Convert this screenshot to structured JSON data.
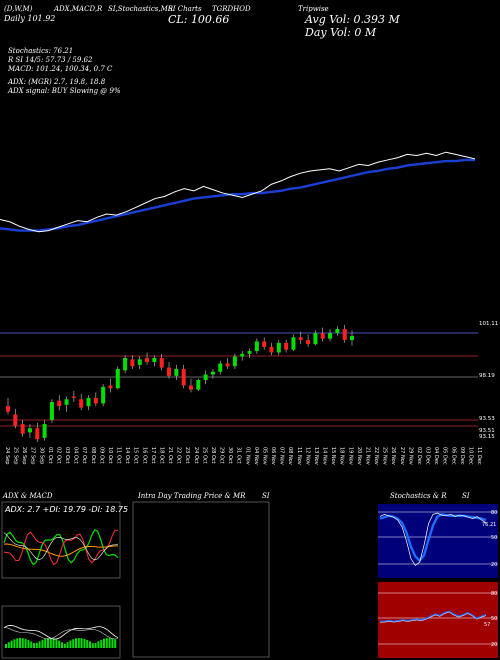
{
  "header": {
    "left_line1": "(D,W,M)",
    "left_line2": "Daily",
    "open_text": "101.92",
    "indicators_label": "ADX,MACD,R",
    "si_label": "SI,Stochastics,MR",
    "si_sub": "SI Charts",
    "close_label": "CL:",
    "close_value": "100.66",
    "ticker_code": "TGRDHOD",
    "company": "Tripwise",
    "avg_vol_label": "Avg Vol:",
    "avg_vol_value": "0.393 M",
    "day_vol_label": "Day Vol:",
    "day_vol_value": "0   M"
  },
  "indicators": {
    "stochastics": "Stochastics: 76.21",
    "rsi": "R                   SI 14/5: 57.73 / 59.62",
    "macd": "MACD: 101.24, 100.34, 0.7 C",
    "adx": "ADX:                         (MGR) 2.7, 19.8, 18.8",
    "adx_signal": "ADX signal:                          BUY Slowing @ 9%"
  },
  "price_labels": {
    "high": "101.11",
    "mid": "98.19",
    "low1": "93.53",
    "low2": "93.51",
    "low3": "93.15"
  },
  "dates": [
    "24 Sep",
    "25 Sep",
    "26 Sep",
    "27 Sep",
    "30 Sep",
    "01 Oct",
    "02 Oct",
    "03 Oct",
    "04 Oct",
    "07 Oct",
    "08 Oct",
    "09 Oct",
    "10 Oct",
    "11 Oct",
    "14 Oct",
    "15 Oct",
    "16 Oct",
    "17 Oct",
    "18 Oct",
    "21 Oct",
    "22 Oct",
    "23 Oct",
    "24 Oct",
    "25 Oct",
    "28 Oct",
    "29 Oct",
    "30 Oct",
    "31 Oct",
    "01 Nov",
    "04 Nov",
    "05 Nov",
    "06 Nov",
    "07 Nov",
    "08 Nov",
    "11 Nov",
    "12 Nov",
    "13 Nov",
    "14 Nov",
    "15 Nov",
    "18 Nov",
    "19 Nov",
    "20 Nov",
    "21 Nov",
    "22 Nov",
    "25 Nov",
    "26 Nov",
    "27 Nov",
    "29 Nov",
    "02 Dec",
    "03 Dec",
    "04 Dec",
    "05 Dec",
    "06 Dec",
    "09 Dec",
    "10 Dec",
    "11 Dec"
  ],
  "panels": {
    "adx_title": "ADX  & MACD",
    "adx_values": "ADX: 2.7 +DI: 19.79 -DI: 18.75",
    "intraday_title": "Intra  Day Trading Price  & MR",
    "intraday_si": "SI",
    "stoch_title": "Stochastics & R",
    "stoch_si": "SI",
    "stoch_ticks": [
      "80",
      "50",
      "20"
    ],
    "stoch_value": "76.21",
    "rsi_ticks": [
      "80",
      "50",
      "20"
    ],
    "rsi_value": "57"
  },
  "colors": {
    "up": "#00e000",
    "down": "#ff2020",
    "ma": "#1a3fd6",
    "close_line": "#ffffff",
    "stoch_bg": "#00007a",
    "rsi_bg": "#a00000"
  },
  "chart_data": {
    "type": "candlestick",
    "y_range": [
      93.0,
      102.0
    ],
    "candles": [
      {
        "o": 95.6,
        "h": 96.2,
        "l": 95.0,
        "c": 95.2
      },
      {
        "o": 95.0,
        "h": 95.4,
        "l": 94.0,
        "c": 94.2
      },
      {
        "o": 94.3,
        "h": 94.6,
        "l": 93.4,
        "c": 93.6
      },
      {
        "o": 93.7,
        "h": 94.3,
        "l": 93.3,
        "c": 94.0
      },
      {
        "o": 94.0,
        "h": 94.4,
        "l": 93.0,
        "c": 93.2
      },
      {
        "o": 93.3,
        "h": 94.6,
        "l": 93.1,
        "c": 94.3
      },
      {
        "o": 94.6,
        "h": 96.1,
        "l": 94.4,
        "c": 95.9
      },
      {
        "o": 96.0,
        "h": 96.4,
        "l": 95.3,
        "c": 95.6
      },
      {
        "o": 95.7,
        "h": 96.3,
        "l": 95.2,
        "c": 96.1
      },
      {
        "o": 96.3,
        "h": 96.7,
        "l": 95.9,
        "c": 96.2
      },
      {
        "o": 96.1,
        "h": 96.5,
        "l": 95.3,
        "c": 95.5
      },
      {
        "o": 95.6,
        "h": 96.4,
        "l": 95.3,
        "c": 96.2
      },
      {
        "o": 96.2,
        "h": 96.6,
        "l": 95.6,
        "c": 95.8
      },
      {
        "o": 95.8,
        "h": 97.2,
        "l": 95.6,
        "c": 97.0
      },
      {
        "o": 97.1,
        "h": 97.6,
        "l": 96.6,
        "c": 96.9
      },
      {
        "o": 96.9,
        "h": 98.5,
        "l": 96.8,
        "c": 98.3
      },
      {
        "o": 98.2,
        "h": 99.3,
        "l": 98.0,
        "c": 99.1
      },
      {
        "o": 99.0,
        "h": 99.3,
        "l": 98.3,
        "c": 98.5
      },
      {
        "o": 98.6,
        "h": 99.2,
        "l": 98.3,
        "c": 99.0
      },
      {
        "o": 99.1,
        "h": 99.5,
        "l": 98.6,
        "c": 98.8
      },
      {
        "o": 98.8,
        "h": 99.3,
        "l": 98.5,
        "c": 99.1
      },
      {
        "o": 99.1,
        "h": 99.4,
        "l": 98.2,
        "c": 98.4
      },
      {
        "o": 98.4,
        "h": 98.8,
        "l": 97.6,
        "c": 97.8
      },
      {
        "o": 97.8,
        "h": 98.6,
        "l": 97.5,
        "c": 98.3
      },
      {
        "o": 98.3,
        "h": 98.6,
        "l": 96.9,
        "c": 97.1
      },
      {
        "o": 97.1,
        "h": 97.6,
        "l": 96.6,
        "c": 96.8
      },
      {
        "o": 96.8,
        "h": 97.6,
        "l": 96.7,
        "c": 97.5
      },
      {
        "o": 97.5,
        "h": 98.2,
        "l": 97.2,
        "c": 97.9
      },
      {
        "o": 97.9,
        "h": 98.3,
        "l": 97.6,
        "c": 98.1
      },
      {
        "o": 98.1,
        "h": 98.9,
        "l": 97.9,
        "c": 98.7
      },
      {
        "o": 98.7,
        "h": 99.1,
        "l": 98.3,
        "c": 98.5
      },
      {
        "o": 98.5,
        "h": 99.4,
        "l": 98.3,
        "c": 99.2
      },
      {
        "o": 99.2,
        "h": 99.6,
        "l": 98.9,
        "c": 99.4
      },
      {
        "o": 99.4,
        "h": 99.8,
        "l": 99.1,
        "c": 99.6
      },
      {
        "o": 99.6,
        "h": 100.5,
        "l": 99.4,
        "c": 100.3
      },
      {
        "o": 100.3,
        "h": 100.6,
        "l": 99.7,
        "c": 99.9
      },
      {
        "o": 99.9,
        "h": 100.2,
        "l": 99.3,
        "c": 99.5
      },
      {
        "o": 99.5,
        "h": 100.4,
        "l": 99.3,
        "c": 100.2
      },
      {
        "o": 100.2,
        "h": 100.4,
        "l": 99.5,
        "c": 99.7
      },
      {
        "o": 99.7,
        "h": 100.8,
        "l": 99.6,
        "c": 100.6
      },
      {
        "o": 100.6,
        "h": 101.0,
        "l": 100.1,
        "c": 100.4
      },
      {
        "o": 100.4,
        "h": 100.8,
        "l": 99.9,
        "c": 100.1
      },
      {
        "o": 100.1,
        "h": 101.1,
        "l": 100.0,
        "c": 100.9
      },
      {
        "o": 100.9,
        "h": 101.3,
        "l": 100.3,
        "c": 100.5
      },
      {
        "o": 100.5,
        "h": 101.2,
        "l": 100.3,
        "c": 100.9
      },
      {
        "o": 100.9,
        "h": 101.4,
        "l": 100.7,
        "c": 101.2
      },
      {
        "o": 101.2,
        "h": 101.5,
        "l": 100.2,
        "c": 100.4
      },
      {
        "o": 100.4,
        "h": 101.1,
        "l": 100.0,
        "c": 100.7
      }
    ],
    "close_line": [
      95.4,
      95.2,
      94.8,
      94.5,
      94.3,
      94.4,
      94.7,
      95.0,
      95.3,
      95.2,
      95.6,
      95.9,
      95.8,
      96.1,
      96.5,
      96.9,
      97.3,
      97.5,
      97.9,
      98.2,
      98.0,
      98.4,
      98.1,
      97.8,
      97.6,
      97.4,
      97.7,
      98.0,
      98.6,
      98.9,
      99.3,
      99.6,
      99.8,
      99.9,
      100.0,
      99.8,
      100.1,
      100.4,
      100.3,
      100.6,
      100.8,
      101.0,
      101.3,
      101.2,
      101.4,
      101.2,
      101.5,
      101.3,
      101.1,
      100.9
    ],
    "ma_line": [
      94.6,
      94.5,
      94.4,
      94.4,
      94.4,
      94.5,
      94.6,
      94.8,
      94.9,
      95.1,
      95.3,
      95.5,
      95.7,
      95.9,
      96.1,
      96.3,
      96.5,
      96.7,
      96.9,
      97.1,
      97.3,
      97.4,
      97.5,
      97.6,
      97.7,
      97.7,
      97.8,
      97.8,
      97.9,
      98.0,
      98.2,
      98.3,
      98.5,
      98.7,
      98.9,
      99.1,
      99.3,
      99.5,
      99.7,
      99.8,
      100.0,
      100.1,
      100.3,
      100.4,
      100.5,
      100.6,
      100.7,
      100.7,
      100.8,
      100.8
    ]
  }
}
